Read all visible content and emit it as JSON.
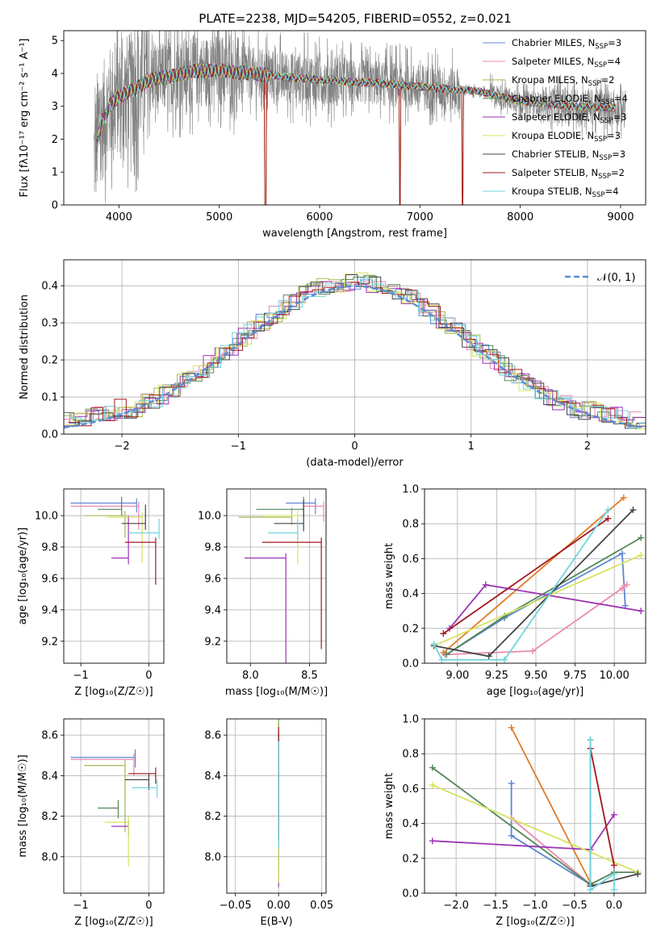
{
  "figure_title": "PLATE=2238, MJD=54205, FIBERID=0552, z=0.021",
  "colors": {
    "Chabrier MILES": "#5f86d3",
    "Salpeter MILES": "#e88bb0",
    "Kroupa MILES": "#9fb84e",
    "Chabrier ELODIE": "#55865a",
    "Salpeter ELODIE": "#9b34b3",
    "Kroupa ELODIE": "#d6e35e",
    "Chabrier STELIB": "#444444",
    "Salpeter STELIB": "#a3161d",
    "Kroupa STELIB": "#72d4dc",
    "data": "#808080",
    "orange": "#e07b27",
    "gaussian": "#5b8ad6"
  },
  "chart_data": [
    {
      "id": "spectrum",
      "type": "line",
      "title": "PLATE=2238, MJD=54205, FIBERID=0552, z=0.021",
      "xlabel": "wavelength [Angstrom, rest frame]",
      "ylabel": "Flux [fλ10⁻¹⁷ erg cm⁻² s⁻¹ A⁻¹]",
      "xlim": [
        3450,
        9250
      ],
      "ylim": [
        0,
        5.3
      ],
      "xticks": [
        4000,
        5000,
        6000,
        7000,
        8000,
        9000
      ],
      "yticks": [
        0,
        1,
        2,
        3,
        4,
        5
      ],
      "legend_position": "top-right",
      "legend": [
        {
          "prefix": "Chabrier MILES, N",
          "sub": "SSP",
          "suffix": "=3",
          "color_key": "Chabrier MILES"
        },
        {
          "prefix": "Salpeter MILES, N",
          "sub": "SSP",
          "suffix": "=4",
          "color_key": "Salpeter MILES"
        },
        {
          "prefix": "Kroupa MILES, N",
          "sub": "SSP",
          "suffix": "=2",
          "color_key": "Kroupa MILES"
        },
        {
          "prefix": "Chabrier ELODIE, N",
          "sub": "SSP",
          "suffix": "=4",
          "color_key": "Chabrier ELODIE"
        },
        {
          "prefix": "Salpeter ELODIE, N",
          "sub": "SSP",
          "suffix": "=3",
          "color_key": "Salpeter ELODIE"
        },
        {
          "prefix": "Kroupa ELODIE, N",
          "sub": "SSP",
          "suffix": "=3",
          "color_key": "Kroupa ELODIE"
        },
        {
          "prefix": "Chabrier STELIB, N",
          "sub": "SSP",
          "suffix": "=3",
          "color_key": "Chabrier STELIB"
        },
        {
          "prefix": "Salpeter STELIB, N",
          "sub": "SSP",
          "suffix": "=2",
          "color_key": "Salpeter STELIB"
        },
        {
          "prefix": "Kroupa STELIB, N",
          "sub": "SSP",
          "suffix": "=4",
          "color_key": "Kroupa STELIB"
        }
      ],
      "data_range": [
        3750,
        9050
      ],
      "model_continuum": [
        [
          3750,
          1.5
        ],
        [
          3820,
          2.4
        ],
        [
          3900,
          3.0
        ],
        [
          4000,
          3.3
        ],
        [
          4100,
          3.45
        ],
        [
          4200,
          3.6
        ],
        [
          4300,
          3.8
        ],
        [
          4400,
          3.85
        ],
        [
          4500,
          3.9
        ],
        [
          4700,
          4.05
        ],
        [
          5000,
          4.1
        ],
        [
          5300,
          4.0
        ],
        [
          5500,
          3.95
        ],
        [
          5800,
          3.85
        ],
        [
          6000,
          3.8
        ],
        [
          6300,
          3.75
        ],
        [
          6600,
          3.7
        ],
        [
          7000,
          3.6
        ],
        [
          7400,
          3.5
        ],
        [
          7600,
          3.45
        ],
        [
          8000,
          3.15
        ],
        [
          8500,
          3.0
        ],
        [
          9000,
          2.95
        ]
      ],
      "dips": [
        {
          "x": 5460,
          "y": 0
        },
        {
          "x": 6800,
          "y": 0
        },
        {
          "x": 7425,
          "y": 0
        }
      ]
    },
    {
      "id": "residuals",
      "type": "bar",
      "xlabel": "(data-model)/error",
      "ylabel": "Normed distribution",
      "xlim": [
        -2.5,
        2.5
      ],
      "ylim": [
        0,
        0.47
      ],
      "xticks": [
        -2,
        -1,
        0,
        1,
        2
      ],
      "yticks": [
        0.0,
        0.1,
        0.2,
        0.3,
        0.4
      ],
      "bin_width": 0.1,
      "legend_position": "top-right",
      "gaussian_label": "𝒩(0, 1)",
      "series_keys": [
        "Chabrier MILES",
        "Salpeter MILES",
        "Kroupa MILES",
        "Chabrier ELODIE",
        "Salpeter ELODIE",
        "Kroupa ELODIE",
        "Chabrier STELIB",
        "Salpeter STELIB",
        "Kroupa STELIB"
      ]
    },
    {
      "id": "z_age",
      "type": "scatter",
      "xlabel": "Z [log₁₀(Z/Z☉)]",
      "ylabel": "age  [log₁₀(age/yr)]",
      "xlim": [
        -1.25,
        0.22
      ],
      "ylim": [
        9.06,
        10.17
      ],
      "xticks": [
        -1,
        0
      ],
      "yticks": [
        9.2,
        9.4,
        9.6,
        9.8,
        10.0
      ],
      "points": [
        {
          "color_key": "Chabrier MILES",
          "x": [
            -1.15,
            -0.18
          ],
          "y": [
            10.08,
            10.06
          ]
        },
        {
          "color_key": "Salpeter MILES",
          "x": [
            -1.15,
            -0.15
          ],
          "y": [
            10.06,
            9.95
          ]
        },
        {
          "color_key": "Kroupa MILES",
          "x": [
            -0.95,
            -0.35
          ],
          "y": [
            10.0,
            9.9
          ]
        },
        {
          "color_key": "Chabrier ELODIE",
          "x": [
            -0.75,
            -0.4
          ],
          "y": [
            10.04,
            10.09
          ]
        },
        {
          "color_key": "Salpeter ELODIE",
          "x": [
            -0.55,
            -0.3
          ],
          "y": [
            9.73,
            9.97
          ]
        },
        {
          "color_key": "Kroupa ELODIE",
          "x": [
            -0.6,
            -0.1
          ],
          "y": [
            9.99,
            9.74
          ]
        },
        {
          "color_key": "Chabrier STELIB",
          "x": [
            -0.4,
            -0.05
          ],
          "y": [
            9.95,
            10.04
          ]
        },
        {
          "color_key": "Salpeter STELIB",
          "x": [
            -0.35,
            0.1
          ],
          "y": [
            9.83,
            9.6
          ]
        },
        {
          "color_key": "Kroupa STELIB",
          "x": [
            -0.3,
            0.15
          ],
          "y": [
            9.89,
            9.95
          ]
        }
      ]
    },
    {
      "id": "mass_age",
      "type": "scatter",
      "xlabel": "mass [log₁₀(M/M☉)]",
      "ylabel": "",
      "xlim": [
        7.8,
        8.64
      ],
      "ylim": [
        9.06,
        10.17
      ],
      "xticks": [
        8.0,
        8.5
      ],
      "yticks": [
        9.2,
        9.4,
        9.6,
        9.8,
        10.0
      ],
      "points": [
        {
          "color_key": "Chabrier MILES",
          "x": [
            8.3,
            8.55
          ],
          "y": [
            10.08,
            10.06
          ]
        },
        {
          "color_key": "Salpeter MILES",
          "x": [
            8.45,
            8.62
          ],
          "y": [
            10.06,
            10.01
          ]
        },
        {
          "color_key": "Kroupa MILES",
          "x": [
            7.9,
            8.35
          ],
          "y": [
            9.99,
            10.02
          ]
        },
        {
          "color_key": "Chabrier ELODIE",
          "x": [
            8.05,
            8.45
          ],
          "y": [
            10.04,
            10.09
          ]
        },
        {
          "color_key": "Salpeter ELODIE",
          "x": [
            7.95,
            8.3
          ],
          "y": [
            9.73,
            9.1
          ]
        },
        {
          "color_key": "Kroupa ELODIE",
          "x": [
            8.1,
            8.4
          ],
          "y": [
            10.0,
            9.74
          ]
        },
        {
          "color_key": "Chabrier STELIB",
          "x": [
            8.2,
            8.45
          ],
          "y": [
            9.95,
            10.07
          ]
        },
        {
          "color_key": "Salpeter STELIB",
          "x": [
            8.1,
            8.6
          ],
          "y": [
            9.83,
            9.2
          ]
        },
        {
          "color_key": "Kroupa STELIB",
          "x": [
            8.15,
            8.4
          ],
          "y": [
            9.89,
            9.95
          ]
        }
      ]
    },
    {
      "id": "age_weight",
      "type": "line",
      "xlabel": "age  [log₁₀(age/yr)]",
      "ylabel": "mass weight",
      "xlim": [
        8.79,
        10.2
      ],
      "ylim": [
        0,
        1.0
      ],
      "xticks": [
        9.0,
        9.25,
        9.5,
        9.75,
        10.0
      ],
      "yticks": [
        0.0,
        0.2,
        0.4,
        0.6,
        0.8,
        1.0
      ],
      "series": [
        {
          "color_key": "Chabrier MILES",
          "x": [
            8.93,
            9.3,
            10.05,
            10.07
          ],
          "y": [
            0.05,
            0.26,
            0.63,
            0.33
          ]
        },
        {
          "color_key": "Salpeter MILES",
          "x": [
            8.92,
            9.48,
            10.05,
            10.08
          ],
          "y": [
            0.05,
            0.07,
            0.43,
            0.45
          ]
        },
        {
          "color_key": "orange",
          "x": [
            8.91,
            10.06
          ],
          "y": [
            0.06,
            0.95
          ]
        },
        {
          "color_key": "Chabrier ELODIE",
          "x": [
            8.93,
            9.3,
            10.17
          ],
          "y": [
            0.05,
            0.27,
            0.72
          ]
        },
        {
          "color_key": "Salpeter ELODIE",
          "x": [
            8.95,
            9.18,
            10.17
          ],
          "y": [
            0.2,
            0.45,
            0.3
          ]
        },
        {
          "color_key": "Kroupa ELODIE",
          "x": [
            8.85,
            10.17
          ],
          "y": [
            0.1,
            0.62
          ]
        },
        {
          "color_key": "Chabrier STELIB",
          "x": [
            8.85,
            9.2,
            10.12
          ],
          "y": [
            0.1,
            0.04,
            0.88
          ]
        },
        {
          "color_key": "Salpeter STELIB",
          "x": [
            8.91,
            9.96
          ],
          "y": [
            0.17,
            0.83
          ]
        },
        {
          "color_key": "Kroupa STELIB",
          "x": [
            8.85,
            8.9,
            9.3,
            9.96
          ],
          "y": [
            0.11,
            0.02,
            0.02,
            0.88
          ]
        }
      ]
    },
    {
      "id": "z_mass",
      "type": "scatter",
      "xlabel": "Z [log₁₀(Z/Z☉)]",
      "ylabel": "mass [log₁₀(M/M☉)]",
      "xlim": [
        -1.25,
        0.22
      ],
      "ylim": [
        7.82,
        8.68
      ],
      "xticks": [
        -1,
        0
      ],
      "yticks": [
        8.0,
        8.2,
        8.4,
        8.6
      ],
      "points": [
        {
          "color_key": "Chabrier MILES",
          "x": [
            -1.15,
            -0.2
          ],
          "y": [
            8.49,
            8.5
          ]
        },
        {
          "color_key": "Salpeter MILES",
          "x": [
            -1.15,
            -0.22
          ],
          "y": [
            8.48,
            8.45
          ]
        },
        {
          "color_key": "Kroupa MILES",
          "x": [
            -0.95,
            -0.35
          ],
          "y": [
            8.45,
            8.17
          ]
        },
        {
          "color_key": "Chabrier ELODIE",
          "x": [
            -0.75,
            -0.45
          ],
          "y": [
            8.24,
            8.25
          ]
        },
        {
          "color_key": "Salpeter ELODIE",
          "x": [
            -0.55,
            -0.3
          ],
          "y": [
            8.15,
            8.15
          ]
        },
        {
          "color_key": "Kroupa ELODIE",
          "x": [
            -0.65,
            -0.3
          ],
          "y": [
            8.17,
            8.0
          ]
        },
        {
          "color_key": "Chabrier STELIB",
          "x": [
            -0.35,
            0.0
          ],
          "y": [
            8.38,
            8.38
          ]
        },
        {
          "color_key": "Salpeter STELIB",
          "x": [
            -0.3,
            0.1
          ],
          "y": [
            8.41,
            8.41
          ]
        },
        {
          "color_key": "Kroupa STELIB",
          "x": [
            -0.25,
            0.12
          ],
          "y": [
            8.34,
            8.35
          ]
        }
      ]
    },
    {
      "id": "ebv_mass",
      "type": "scatter",
      "xlabel": "E(B-V)",
      "ylabel": "",
      "xlim": [
        -0.06,
        0.055
      ],
      "ylim": [
        7.82,
        8.68
      ],
      "xticks": [
        -0.05,
        0.0,
        0.05
      ],
      "yticks": [
        8.0,
        8.2,
        8.4,
        8.6
      ],
      "points": [
        {
          "color_key": "Chabrier MILES",
          "x": [
            0.0
          ],
          "y": [
            8.49
          ]
        },
        {
          "color_key": "Salpeter MILES",
          "x": [
            0.0
          ],
          "y": [
            8.48
          ]
        },
        {
          "color_key": "Kroupa MILES",
          "x": [
            0.0
          ],
          "y": [
            8.45
          ]
        },
        {
          "color_key": "Chabrier ELODIE",
          "x": [
            0.0
          ],
          "y": [
            8.24
          ]
        },
        {
          "color_key": "Salpeter ELODIE",
          "x": [
            0.0
          ],
          "y": [
            8.15
          ]
        },
        {
          "color_key": "Kroupa ELODIE",
          "x": [
            0.0
          ],
          "y": [
            8.17
          ]
        },
        {
          "color_key": "Chabrier STELIB",
          "x": [
            0.0
          ],
          "y": [
            8.38
          ]
        },
        {
          "color_key": "Salpeter STELIB",
          "x": [
            0.0
          ],
          "y": [
            8.41
          ]
        },
        {
          "color_key": "Kroupa STELIB",
          "x": [
            0.0
          ],
          "y": [
            8.34
          ]
        }
      ]
    },
    {
      "id": "z_weight",
      "type": "line",
      "xlabel": "Z [log₁₀(Z/Z☉)]",
      "ylabel": "mass weight",
      "xlim": [
        -2.4,
        0.4
      ],
      "ylim": [
        0,
        1.0
      ],
      "xticks": [
        -2.0,
        -1.5,
        -1.0,
        -0.5,
        0.0
      ],
      "yticks": [
        0.0,
        0.2,
        0.4,
        0.6,
        0.8,
        1.0
      ],
      "series": [
        {
          "color_key": "Chabrier MILES",
          "x": [
            -1.3,
            -1.3,
            -0.3
          ],
          "y": [
            0.63,
            0.33,
            0.05
          ]
        },
        {
          "color_key": "Salpeter MILES",
          "x": [
            -1.3,
            -0.3,
            0.0
          ],
          "y": [
            0.43,
            0.05,
            0.12
          ]
        },
        {
          "color_key": "orange",
          "x": [
            -1.3,
            -0.3
          ],
          "y": [
            0.95,
            0.06
          ]
        },
        {
          "color_key": "Chabrier ELODIE",
          "x": [
            -2.3,
            -0.3,
            0.0,
            0.3
          ],
          "y": [
            0.72,
            0.05,
            0.12,
            0.12
          ]
        },
        {
          "color_key": "Salpeter ELODIE",
          "x": [
            -2.3,
            -0.3,
            0.0
          ],
          "y": [
            0.3,
            0.25,
            0.45
          ]
        },
        {
          "color_key": "Kroupa ELODIE",
          "x": [
            -2.3,
            0.3
          ],
          "y": [
            0.62,
            0.12
          ]
        },
        {
          "color_key": "Chabrier STELIB",
          "x": [
            -0.3,
            -0.3,
            0.3
          ],
          "y": [
            0.88,
            0.04,
            0.11
          ]
        },
        {
          "color_key": "Salpeter STELIB",
          "x": [
            -0.3,
            0.0
          ],
          "y": [
            0.83,
            0.16
          ]
        },
        {
          "color_key": "Kroupa STELIB",
          "x": [
            -0.3,
            -0.3,
            0.0,
            0.0
          ],
          "y": [
            0.88,
            0.02,
            0.11,
            0.02
          ]
        }
      ]
    }
  ]
}
